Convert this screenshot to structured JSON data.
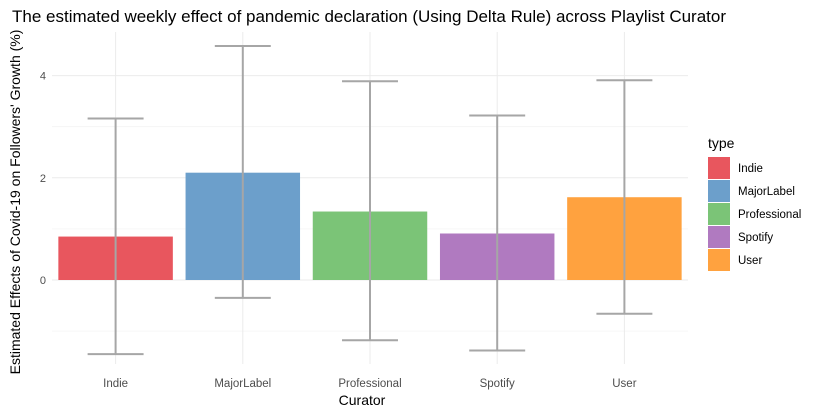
{
  "chart_data": {
    "type": "bar",
    "title": "The estimated weekly effect of pandemic declaration (Using Delta Rule) across Playlist Curator",
    "xlabel": "Curator",
    "ylabel": "Estimated Effects of Covid-19 on Followers' Growth (%)",
    "categories": [
      "Indie",
      "MajorLabel",
      "Professional",
      "Spotify",
      "User"
    ],
    "values": [
      0.85,
      2.1,
      1.34,
      0.91,
      1.62
    ],
    "error_low": [
      -1.45,
      -0.35,
      -1.18,
      -1.38,
      -0.66
    ],
    "error_high": [
      3.16,
      4.58,
      3.89,
      3.22,
      3.91
    ],
    "colors": [
      "#E8565E",
      "#6C9FCB",
      "#7BC477",
      "#B07AC0",
      "#FFA23F"
    ],
    "error_bar_color": "#A6A6A6",
    "ylim": [
      -1.75,
      4.75
    ],
    "yticks": [
      0,
      2,
      4
    ],
    "grid": true,
    "legend": {
      "title": "type",
      "position": "right",
      "entries": [
        "Indie",
        "MajorLabel",
        "Professional",
        "Spotify",
        "User"
      ]
    }
  }
}
